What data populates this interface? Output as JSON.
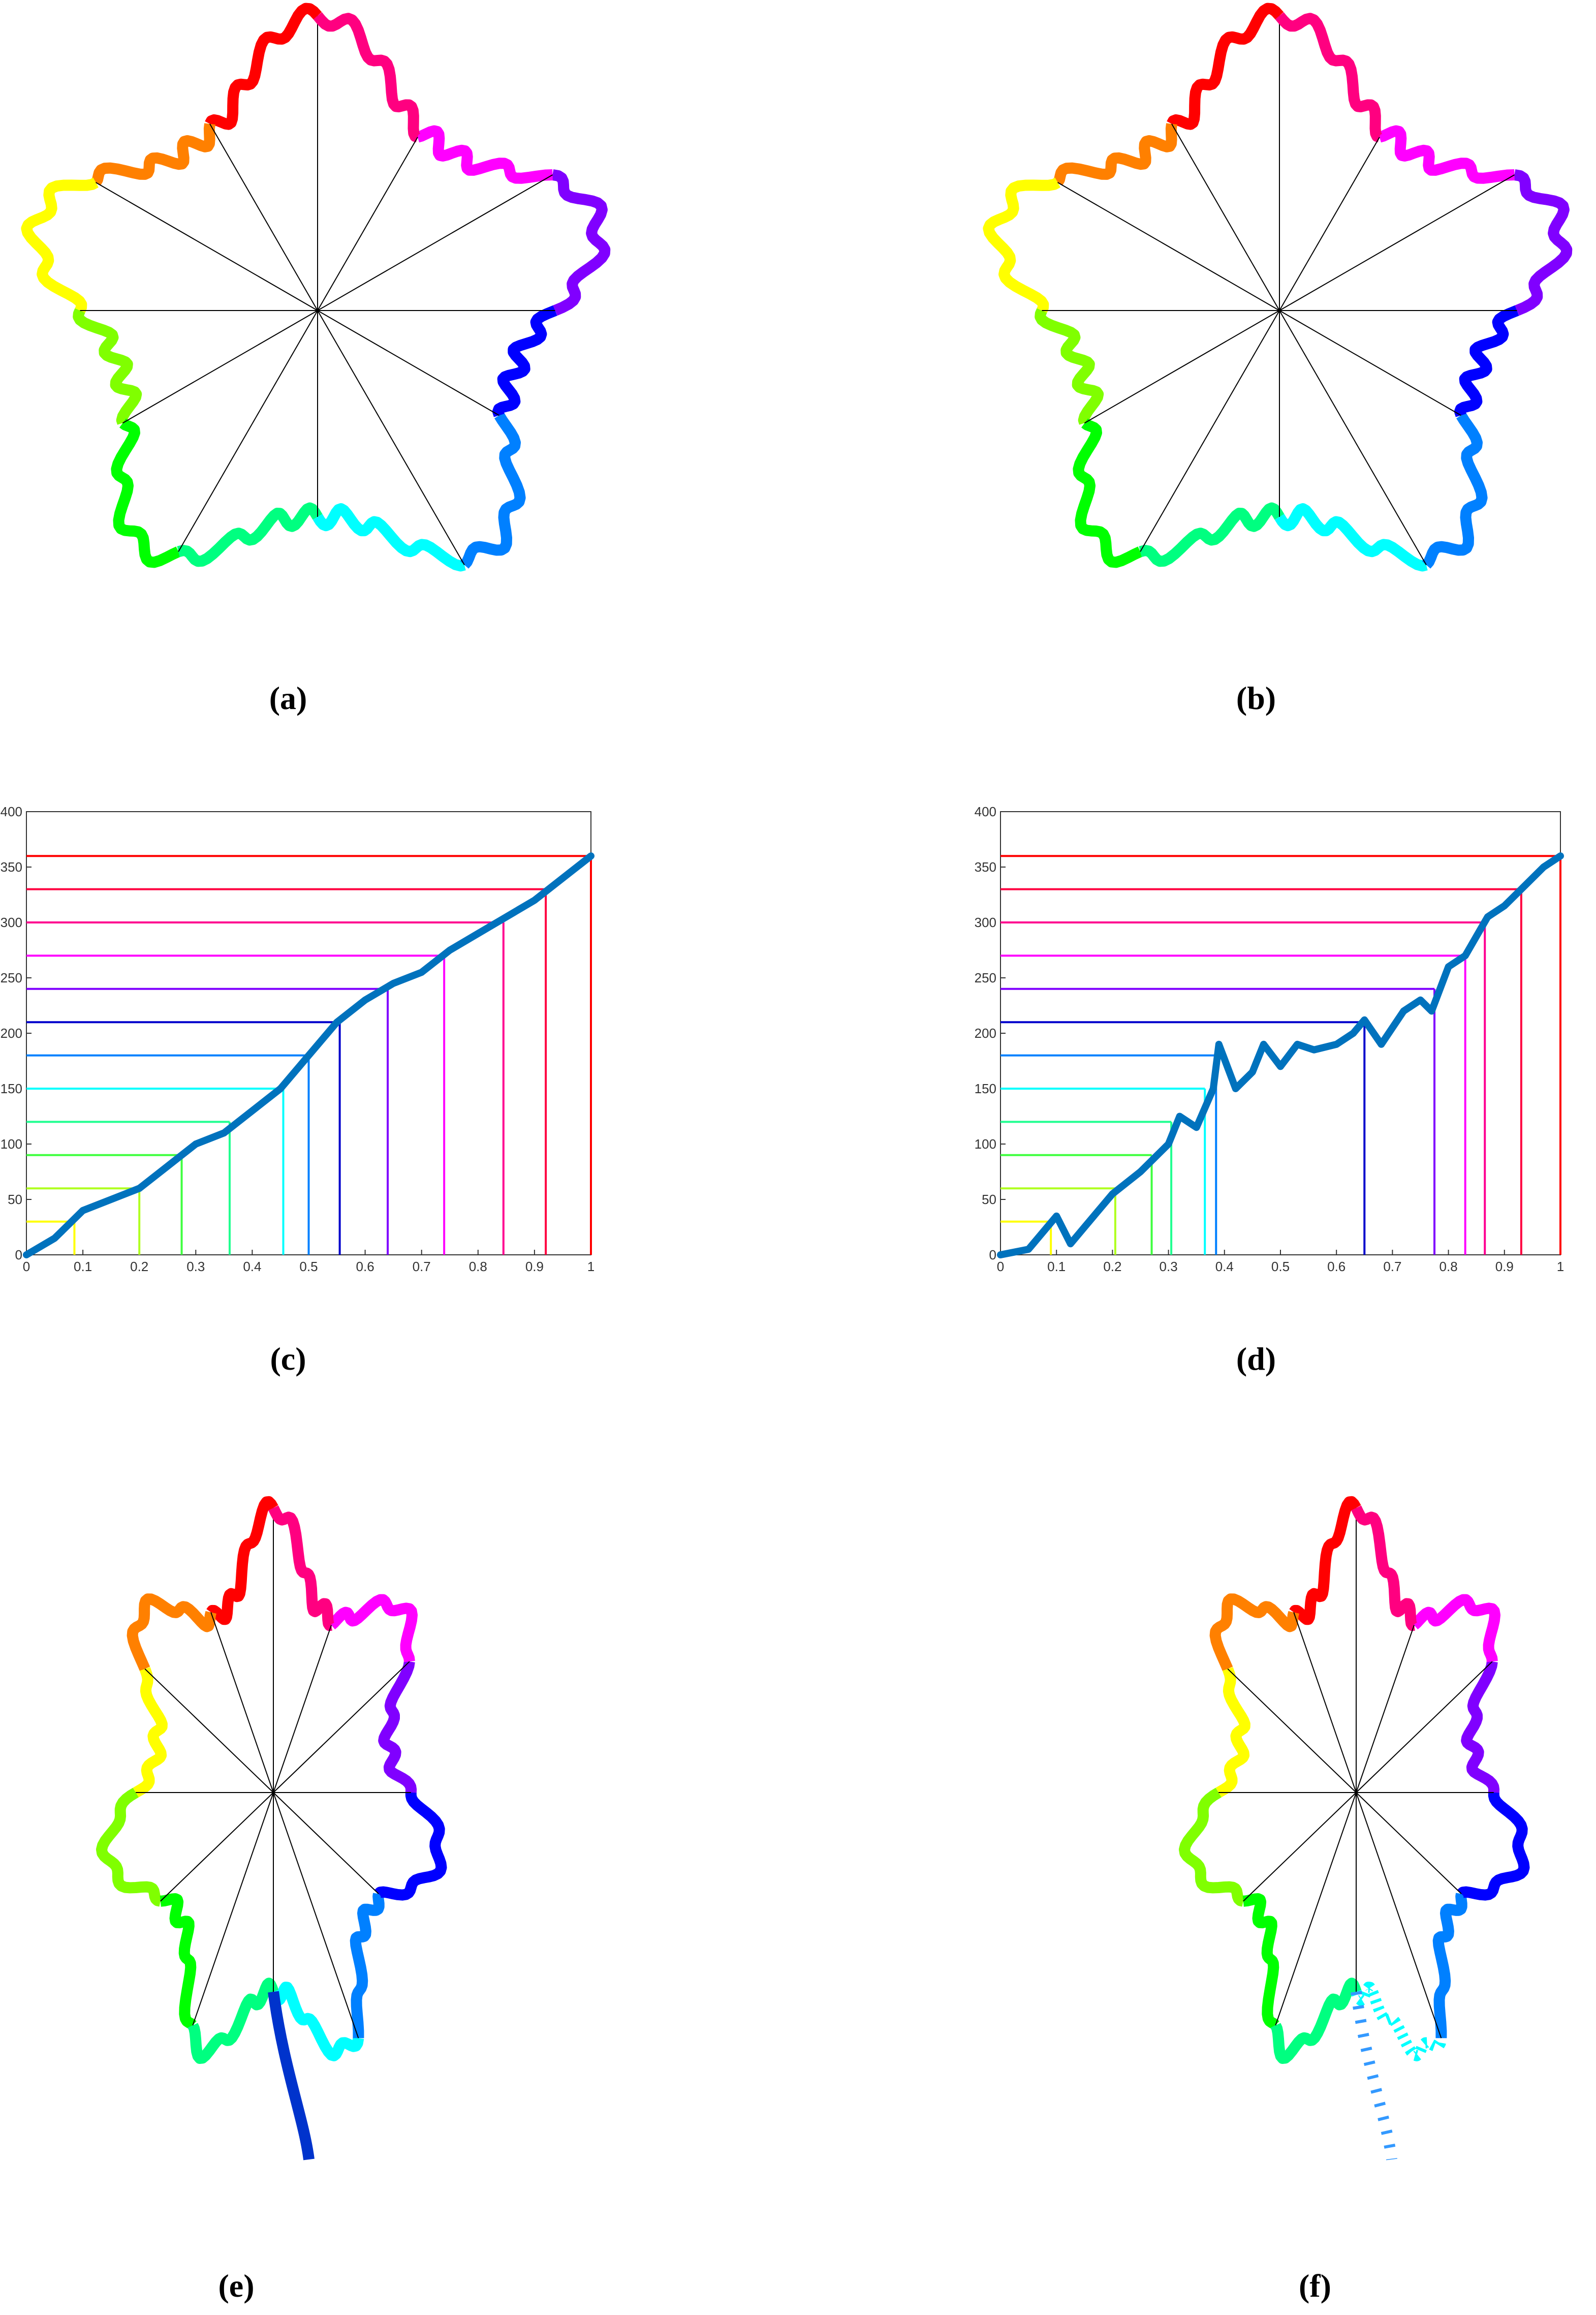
{
  "labels": [
    "(a)",
    "(b)",
    "(c)",
    "(d)",
    "(e)",
    "(f)"
  ],
  "chart_data": [
    {
      "type": "line",
      "xlim": [
        0,
        1
      ],
      "ylim": [
        0,
        400
      ],
      "xticks": [
        0,
        0.1,
        0.2,
        0.3,
        0.4,
        0.5,
        0.6,
        0.7,
        0.8,
        0.9,
        1
      ],
      "yticks": [
        0,
        50,
        100,
        150,
        200,
        250,
        300,
        350,
        400
      ],
      "series": [
        {
          "color": "#0072bd",
          "x": [
            0,
            0.05,
            0.1,
            0.15,
            0.2,
            0.25,
            0.3,
            0.35,
            0.4,
            0.45,
            0.5,
            0.55,
            0.6,
            0.65,
            0.7,
            0.75,
            0.8,
            0.85,
            0.9,
            0.95,
            1
          ],
          "values": [
            0,
            15,
            40,
            50,
            60,
            80,
            100,
            110,
            130,
            150,
            180,
            210,
            230,
            245,
            255,
            275,
            290,
            305,
            320,
            340,
            360
          ]
        }
      ],
      "levels": {
        "values": [
          30,
          60,
          90,
          120,
          150,
          180,
          210,
          240,
          270,
          300,
          330,
          360
        ],
        "x": [
          0.085,
          0.2,
          0.275,
          0.36,
          0.455,
          0.5,
          0.555,
          0.64,
          0.74,
          0.845,
          0.92,
          1
        ],
        "colors": [
          "#ffff00",
          "#b0ff20",
          "#40ff40",
          "#20ff90",
          "#00ffff",
          "#0080ff",
          "#0000cc",
          "#8000ff",
          "#ff00ff",
          "#ff0090",
          "#ff0040",
          "#ff0000"
        ]
      }
    },
    {
      "type": "line",
      "xlim": [
        0,
        1
      ],
      "ylim": [
        0,
        400
      ],
      "xticks": [
        0,
        0.1,
        0.2,
        0.3,
        0.4,
        0.5,
        0.6,
        0.7,
        0.8,
        0.9,
        1
      ],
      "yticks": [
        0,
        50,
        100,
        150,
        200,
        250,
        300,
        350,
        400
      ],
      "series": [
        {
          "color": "#0072bd",
          "x": [
            0,
            0.05,
            0.1,
            0.125,
            0.15,
            0.2,
            0.25,
            0.3,
            0.32,
            0.35,
            0.38,
            0.39,
            0.42,
            0.45,
            0.47,
            0.5,
            0.53,
            0.56,
            0.6,
            0.63,
            0.65,
            0.68,
            0.72,
            0.75,
            0.77,
            0.8,
            0.83,
            0.87,
            0.9,
            0.93,
            0.97,
            1
          ],
          "values": [
            0,
            5,
            35,
            10,
            25,
            55,
            75,
            100,
            125,
            115,
            150,
            190,
            150,
            165,
            190,
            170,
            190,
            185,
            190,
            200,
            212,
            190,
            220,
            230,
            220,
            260,
            270,
            305,
            315,
            330,
            350,
            360
          ]
        }
      ],
      "levels": {
        "values": [
          30,
          60,
          90,
          120,
          150,
          180,
          210,
          240,
          270,
          300,
          330,
          360
        ],
        "x": [
          0.09,
          0.205,
          0.27,
          0.305,
          0.365,
          0.385,
          0.65,
          0.775,
          0.83,
          0.865,
          0.93,
          1
        ],
        "colors": [
          "#ffff00",
          "#b0ff20",
          "#40ff40",
          "#20ff90",
          "#00ffff",
          "#0080ff",
          "#0000cc",
          "#8000ff",
          "#ff00ff",
          "#ff0090",
          "#ff0040",
          "#ff0000"
        ]
      }
    }
  ]
}
